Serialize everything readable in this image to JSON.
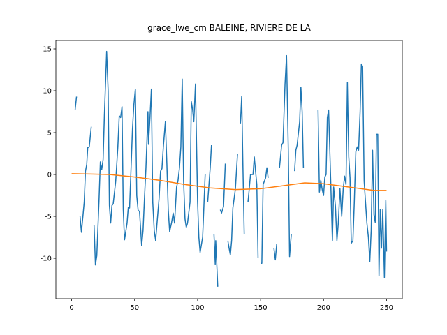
{
  "chart_data": {
    "type": "line",
    "title": "grace_lwe_cm BALEINE, RIVIERE DE LA",
    "xlim": [
      -12.5,
      262.5
    ],
    "xticks": [
      0,
      50,
      100,
      150,
      200,
      250
    ],
    "ylim": [
      -14.83,
      16
    ],
    "yticks": [
      -10,
      -5,
      0,
      5,
      10,
      15
    ],
    "series": [
      {
        "color": "#1f77b4",
        "x": [
          2.8,
          3.9,
          5.3,
          6.7,
          7.8,
          10,
          11,
          12,
          12.8,
          14,
          15.6,
          16.7,
          17.8,
          18.9,
          20,
          21.7,
          22.8,
          23.9,
          25,
          26,
          27.8,
          29,
          30,
          31,
          32,
          33,
          35,
          36.7,
          37.8,
          38.9,
          40,
          41,
          42,
          44,
          45,
          46,
          47,
          48.3,
          49.4,
          50.6,
          51.7,
          52.8,
          53.9,
          55.6,
          56.7,
          57.8,
          59,
          60.6,
          61,
          62.2,
          63.3,
          64.4,
          65.6,
          66.7,
          67.8,
          69.4,
          70.6,
          71.7,
          72.8,
          74.4,
          75.6,
          76.7,
          77.8,
          79.4,
          80.6,
          81.7,
          83.3,
          84.4,
          85.6,
          86.7,
          87.8,
          88.9,
          90,
          91,
          92,
          94,
          95,
          96,
          97,
          98.3,
          100,
          101,
          102,
          104,
          105,
          106,
          107,
          108,
          110,
          111,
          112,
          113,
          114,
          114.4,
          116,
          117,
          118,
          119,
          120.6,
          122,
          123,
          124,
          125,
          126,
          127,
          128,
          130,
          131.7,
          133,
          134,
          135,
          136,
          137,
          138.5,
          140,
          141,
          142,
          144,
          145,
          146,
          147,
          148,
          149,
          150,
          151,
          152,
          154,
          155,
          156,
          158,
          160.6,
          161.7,
          162.8,
          164,
          165,
          166.7,
          167.8,
          169.4,
          170.6,
          172,
          173,
          174.4,
          176,
          177,
          178,
          179,
          181,
          182,
          183,
          184,
          190,
          195.6,
          196.7,
          197.8,
          198.9,
          200,
          201,
          202,
          203,
          204,
          205.6,
          207,
          208,
          209.4,
          210.6,
          211.7,
          213,
          214.4,
          215.6,
          216.7,
          217.8,
          218.9,
          220,
          221,
          222,
          223.3,
          224.4,
          225.6,
          226.7,
          227.8,
          229,
          230,
          231,
          232.2,
          233.3,
          234.4,
          235.6,
          236.7,
          237.8,
          238.9,
          240,
          241,
          242,
          243,
          244,
          245,
          246,
          247,
          248.3,
          249.4,
          250
        ],
        "values": [
          7.75,
          9.3,
          null,
          -5,
          -6.9,
          -3.3,
          0.4,
          1.2,
          3.2,
          3.3,
          5.7,
          null,
          -6,
          -10.8,
          -9.7,
          -3.3,
          1.5,
          0.6,
          1.8,
          7,
          14.7,
          10,
          -3.7,
          -5.8,
          -3.7,
          -3.5,
          -0.8,
          3.3,
          7,
          6.8,
          8.1,
          -4.2,
          -7.8,
          -5.8,
          -3.9,
          -4,
          0,
          5.4,
          8.3,
          10.2,
          -2.5,
          -4.3,
          -4.4,
          -8.5,
          -6.7,
          -2.9,
          0.8,
          7.5,
          3.6,
          6.8,
          10.2,
          -3.3,
          -6.7,
          -7.9,
          -5.8,
          -2.9,
          0.4,
          0.7,
          3.3,
          6.3,
          1.3,
          -4.2,
          -6.8,
          -5.7,
          -4.6,
          -5.8,
          -1.5,
          -0.8,
          0.8,
          3.3,
          11.4,
          -0.8,
          -5.3,
          -6.3,
          -5.8,
          -3.3,
          8.7,
          7.8,
          6.3,
          10.8,
          -3.3,
          -7.5,
          -9.3,
          -7.5,
          -3.8,
          0,
          null,
          -3.3,
          0.8,
          3.5,
          null,
          -7.1,
          -10.7,
          -7.9,
          -13.4,
          null,
          -4.2,
          -4.6,
          -3.8,
          1.3,
          null,
          -7.9,
          -8.8,
          -9.6,
          -7.9,
          -4,
          -1.7,
          2.5,
          null,
          6.1,
          9.3,
          0.8,
          -7.1,
          null,
          -3.3,
          -1.7,
          0,
          0,
          2.1,
          0.4,
          -1.2,
          -10,
          null,
          -10.6,
          -10.6,
          -1.2,
          -0.4,
          0.8,
          -0.4,
          null,
          -8.8,
          -10.2,
          -8.3,
          null,
          0.8,
          3.5,
          3.8,
          10.8,
          14.2,
          2.9,
          -9.8,
          -7.1,
          null,
          0.4,
          2.9,
          3.5,
          6.3,
          10.4,
          7.5,
          0.8,
          null,
          7.75,
          -2.1,
          -0.7,
          -1.8,
          -2.5,
          -0.3,
          0,
          6.8,
          7.7,
          -0.4,
          -7.9,
          -1.5,
          -3.8,
          -7.9,
          -5.8,
          -1.7,
          -5,
          -1.7,
          -0.2,
          -1.2,
          11,
          2.1,
          -0.4,
          -8.2,
          -7.9,
          -3.3,
          2.7,
          3.3,
          2.9,
          7.5,
          13.2,
          12.9,
          -0.8,
          -3.3,
          -5.8,
          -7.5,
          -10.4,
          -6.7,
          2.9,
          -4.8,
          -5.7,
          4.8,
          4.8,
          -12.1,
          -4.2,
          -8.8,
          -4.2,
          -12.3,
          -3.1,
          -9.2
        ]
      },
      {
        "color": "#ff7f0e",
        "x": [
          0,
          15,
          30,
          50,
          70,
          90,
          110,
          130,
          150,
          170,
          185,
          200,
          220,
          240,
          250
        ],
        "values": [
          0.1,
          0.05,
          0,
          -0.3,
          -0.7,
          -1.2,
          -1.6,
          -1.8,
          -1.7,
          -1.3,
          -1,
          -1.1,
          -1.5,
          -1.9,
          -1.9
        ]
      }
    ]
  }
}
